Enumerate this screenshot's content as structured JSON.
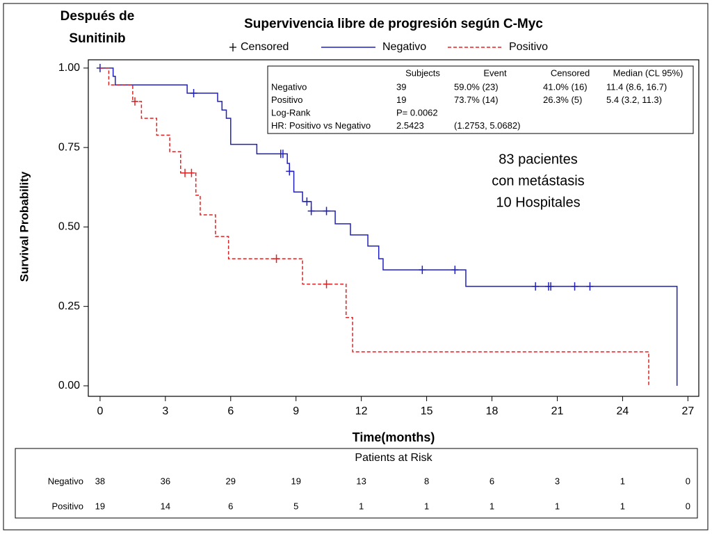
{
  "chart_data": {
    "type": "survival",
    "title": "Supervivencia libre de progresión según C-Myc",
    "corner_title": [
      "Después de",
      "Sunitinib"
    ],
    "xlabel": "Time(months)",
    "ylabel": "Survival Probability",
    "censored_label": "Censored",
    "xlim": [
      -0.54,
      27.5
    ],
    "ylim": [
      -0.033,
      1.026
    ],
    "xticks": [
      0,
      3,
      6,
      9,
      12,
      15,
      18,
      21,
      24,
      27
    ],
    "yticks": [
      {
        "value": 0,
        "label": "0.00"
      },
      {
        "value": 0.25,
        "label": "0.25"
      },
      {
        "value": 0.5,
        "label": "0.50"
      },
      {
        "value": 0.75,
        "label": "0.75"
      },
      {
        "value": 1,
        "label": "1.00"
      }
    ],
    "series": [
      {
        "name": "Negativo",
        "color": "#1f1fbf",
        "dash": false,
        "x": [
          0,
          0.6,
          0.7,
          4.0,
          5.4,
          5.6,
          5.8,
          6.0,
          7.2,
          8.6,
          8.7,
          8.9,
          9.3,
          9.7,
          10.8,
          11.5,
          12.3,
          12.8,
          13.0,
          16.8,
          26.5
        ],
        "values": [
          1.0,
          0.974,
          0.947,
          0.921,
          0.895,
          0.868,
          0.842,
          0.76,
          0.73,
          0.7,
          0.675,
          0.61,
          0.58,
          0.55,
          0.51,
          0.475,
          0.44,
          0.4,
          0.365,
          0.313,
          0
        ],
        "censored_x": [
          0,
          4.3,
          8.3,
          8.4,
          8.7,
          9.5,
          9.7,
          10.4,
          14.8,
          16.3,
          20.0,
          20.6,
          20.7,
          21.8,
          22.5
        ],
        "censored_values": [
          1.0,
          0.921,
          0.73,
          0.73,
          0.675,
          0.58,
          0.55,
          0.55,
          0.365,
          0.365,
          0.313,
          0.313,
          0.313,
          0.313,
          0.313
        ]
      },
      {
        "name": "Positivo",
        "color": "#e02020",
        "dash": true,
        "x": [
          0,
          0.4,
          1.5,
          1.9,
          2.6,
          3.2,
          3.7,
          4.4,
          4.6,
          5.3,
          5.9,
          9.3,
          11.3,
          11.6,
          25.2
        ],
        "values": [
          1.0,
          0.947,
          0.895,
          0.842,
          0.789,
          0.737,
          0.67,
          0.6,
          0.538,
          0.47,
          0.4,
          0.32,
          0.215,
          0.107,
          0
        ],
        "censored_x": [
          1.6,
          3.9,
          4.2,
          8.1,
          10.4
        ],
        "censored_values": [
          0.895,
          0.67,
          0.67,
          0.4,
          0.32
        ]
      }
    ],
    "stats_table": {
      "columns": [
        "Subjects",
        "Event",
        "Censored",
        "Median (CL 95%)"
      ],
      "rows": [
        {
          "label": "Negativo",
          "cells": [
            "39",
            "59.0% (23)",
            "41.0% (16)",
            "11.4 (8.6, 16.7)"
          ]
        },
        {
          "label": "Positivo",
          "cells": [
            "19",
            "73.7% (14)",
            "26.3% (5)",
            "5.4 (3.2, 11.3)"
          ]
        },
        {
          "label": "Log-Rank",
          "cells": [
            "P= 0.0062"
          ]
        },
        {
          "label": "HR: Positivo vs Negativo",
          "cells": [
            "2.5423",
            "(1.2753, 5.0682)"
          ]
        }
      ]
    },
    "annotation": [
      "83 pacientes",
      "con metástasis",
      "10 Hospitales"
    ],
    "risk_table": {
      "title": "Patients at Risk",
      "rows": [
        {
          "name": "Negativo",
          "values": [
            38,
            36,
            29,
            19,
            13,
            8,
            6,
            3,
            1,
            0
          ]
        },
        {
          "name": "Positivo",
          "values": [
            19,
            14,
            6,
            5,
            1,
            1,
            1,
            1,
            1,
            0
          ]
        }
      ]
    }
  }
}
